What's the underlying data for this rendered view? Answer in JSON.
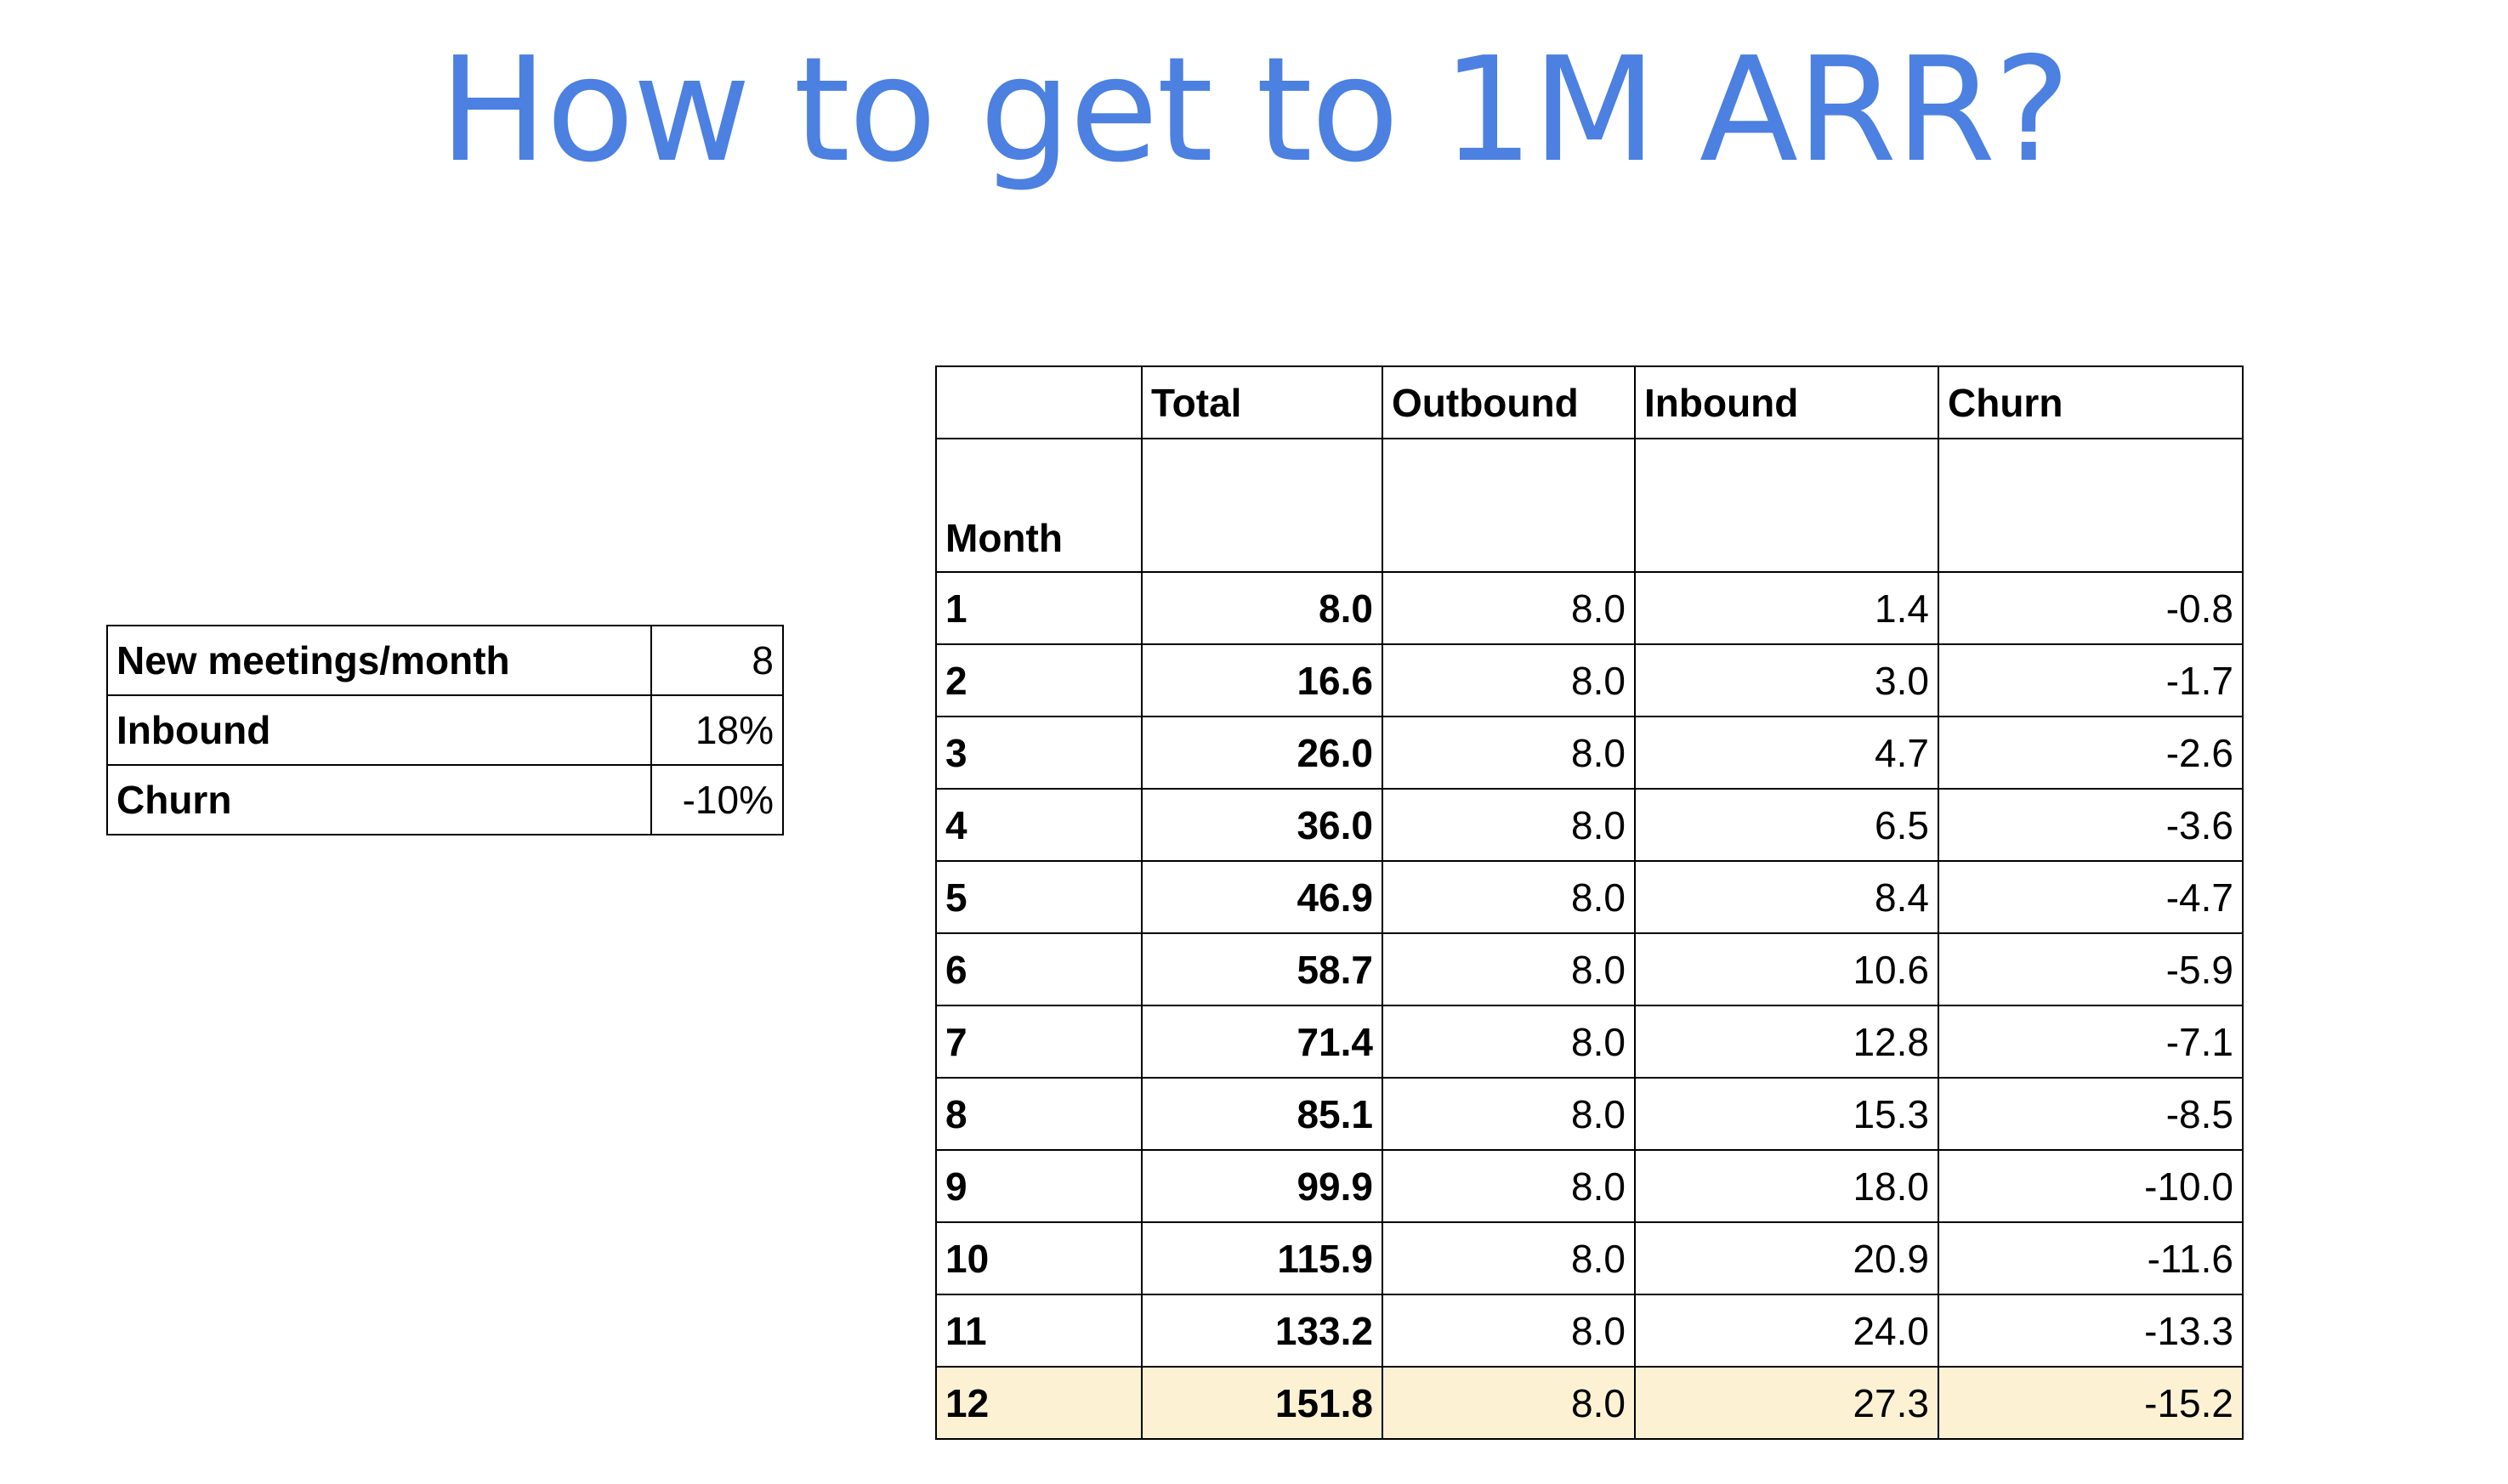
{
  "title": "How to get to 1M ARR?",
  "assumptions": [
    {
      "label": "New meetings/month",
      "value": "8"
    },
    {
      "label": "Inbound",
      "value": "18%"
    },
    {
      "label": "Churn",
      "value": "-10%"
    }
  ],
  "table": {
    "headers": [
      "",
      "Total",
      "Outbound",
      "Inbound",
      "Churn"
    ],
    "row_header": "Month",
    "rows": [
      [
        "1",
        "8.0",
        "8.0",
        "1.4",
        "-0.8"
      ],
      [
        "2",
        "16.6",
        "8.0",
        "3.0",
        "-1.7"
      ],
      [
        "3",
        "26.0",
        "8.0",
        "4.7",
        "-2.6"
      ],
      [
        "4",
        "36.0",
        "8.0",
        "6.5",
        "-3.6"
      ],
      [
        "5",
        "46.9",
        "8.0",
        "8.4",
        "-4.7"
      ],
      [
        "6",
        "58.7",
        "8.0",
        "10.6",
        "-5.9"
      ],
      [
        "7",
        "71.4",
        "8.0",
        "12.8",
        "-7.1"
      ],
      [
        "8",
        "85.1",
        "8.0",
        "15.3",
        "-8.5"
      ],
      [
        "9",
        "99.9",
        "8.0",
        "18.0",
        "-10.0"
      ],
      [
        "10",
        "115.9",
        "8.0",
        "20.9",
        "-11.6"
      ],
      [
        "11",
        "133.2",
        "8.0",
        "24.0",
        "-13.3"
      ],
      [
        "12",
        "151.8",
        "8.0",
        "27.3",
        "-15.2"
      ]
    ],
    "highlight_row_color": "#fcf2d3"
  },
  "colors": {
    "title": "#4c80e1"
  }
}
